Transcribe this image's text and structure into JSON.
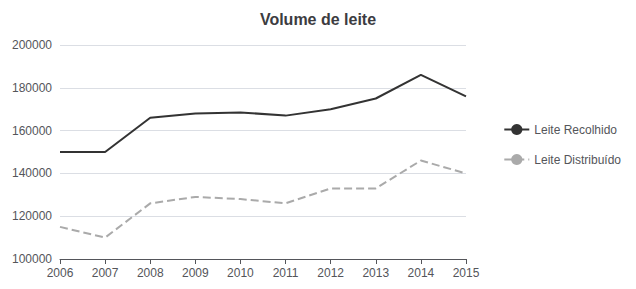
{
  "chart_data": {
    "type": "line",
    "title": "Volume de leite",
    "categories": [
      "2006",
      "2007",
      "2008",
      "2009",
      "2010",
      "2011",
      "2012",
      "2013",
      "2014",
      "2015"
    ],
    "series": [
      {
        "name": "Leite Recolhido",
        "color": "#333333",
        "line_style": "solid",
        "values": [
          150000,
          150000,
          166000,
          168000,
          168500,
          167000,
          170000,
          175000,
          186000,
          176000
        ]
      },
      {
        "name": "Leite Distribuído",
        "color": "#aaaaaa",
        "line_style": "dashed",
        "values": [
          115000,
          110000,
          126000,
          129000,
          128000,
          126000,
          133000,
          133000,
          146000,
          140000
        ]
      }
    ],
    "ylim": [
      100000,
      200000
    ],
    "yticks": [
      100000,
      120000,
      140000,
      160000,
      180000,
      200000
    ],
    "grid": true,
    "legend": "right"
  }
}
